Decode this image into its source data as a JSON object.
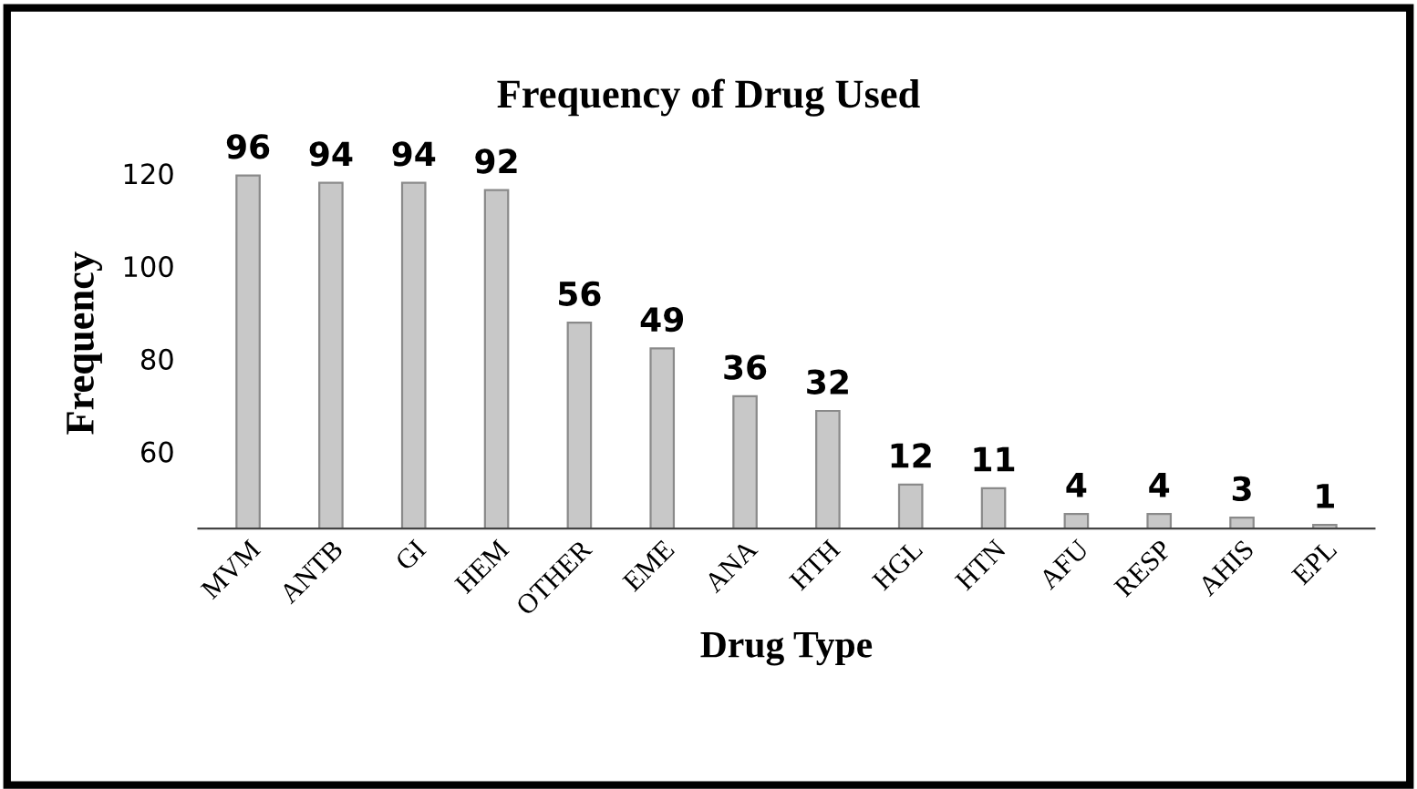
{
  "chart_data": {
    "type": "bar",
    "title": "Frequency of Drug Used",
    "xlabel": "Drug Type",
    "ylabel": "Frequency",
    "categories": [
      "MVM",
      "ANTB",
      "GI",
      "HEM",
      "OTHER",
      "EME",
      "ANA",
      "HTH",
      "HGL",
      "HTN",
      "AFU",
      "RESP",
      "AHIS",
      "EPL"
    ],
    "values": [
      96,
      94,
      94,
      92,
      56,
      49,
      36,
      32,
      12,
      11,
      4,
      4,
      3,
      1
    ],
    "color": "#c8c8c8",
    "data_labels": true,
    "grid": false,
    "annotations": [
      "120",
      "100",
      "80",
      "60"
    ]
  }
}
